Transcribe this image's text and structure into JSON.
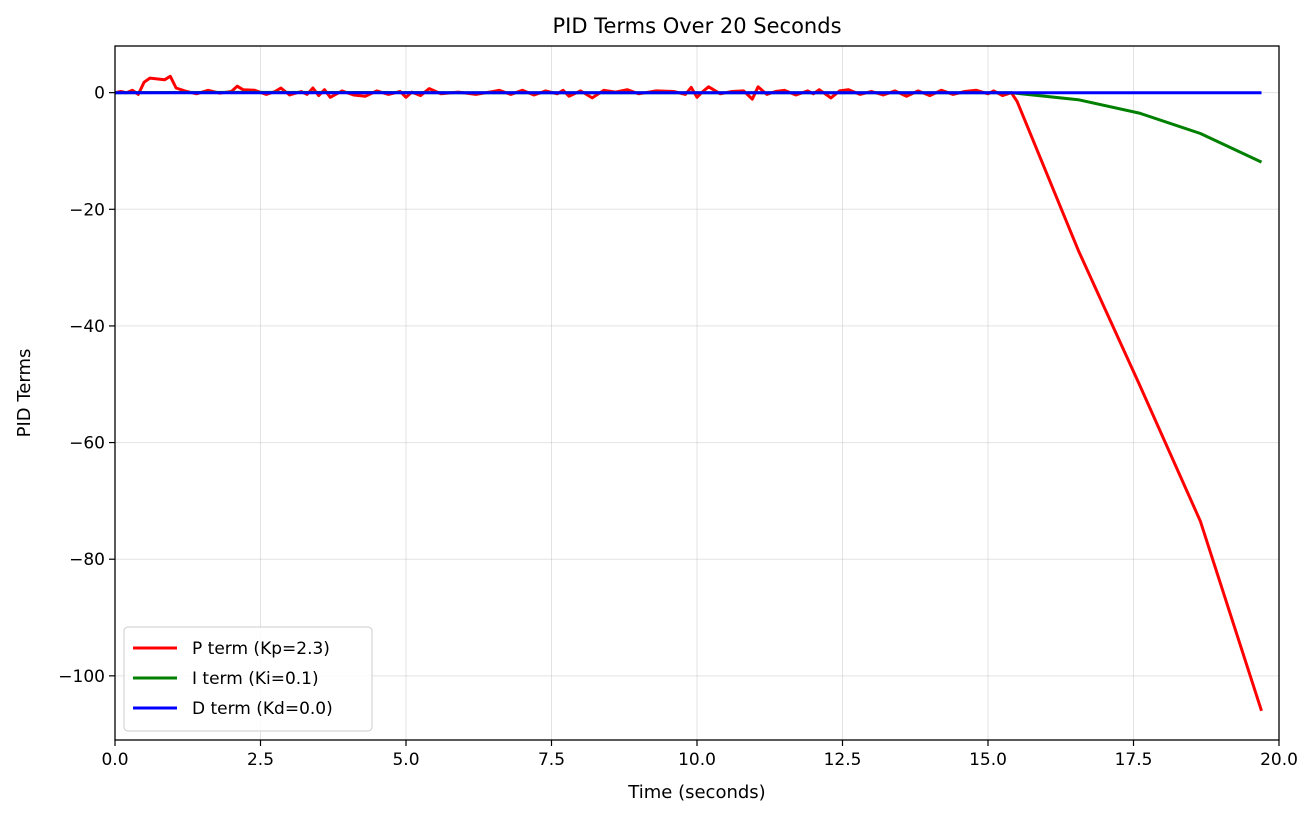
{
  "chart_data": {
    "type": "line",
    "title": "PID Terms Over 20 Seconds",
    "xlabel": "Time (seconds)",
    "ylabel": "PID Terms",
    "xlim": [
      0,
      20
    ],
    "ylim": [
      -111,
      8
    ],
    "xticks": [
      0.0,
      2.5,
      5.0,
      7.5,
      10.0,
      12.5,
      15.0,
      17.5,
      20.0
    ],
    "xtick_labels": [
      "0.0",
      "2.5",
      "5.0",
      "7.5",
      "10.0",
      "12.5",
      "15.0",
      "17.5",
      "20.0"
    ],
    "yticks": [
      0,
      -20,
      -40,
      -60,
      -80,
      -100
    ],
    "ytick_labels": [
      "0",
      "−20",
      "−40",
      "−60",
      "−80",
      "−100"
    ],
    "grid": true,
    "legend_position": "lower-left",
    "series": [
      {
        "name": "P term (Kp=2.3)",
        "color": "#ff0000",
        "x": [
          0.0,
          0.1,
          0.2,
          0.3,
          0.4,
          0.5,
          0.6,
          0.7,
          0.85,
          0.95,
          1.05,
          1.2,
          1.4,
          1.6,
          1.8,
          2.0,
          2.1,
          2.2,
          2.4,
          2.6,
          2.75,
          2.85,
          3.0,
          3.2,
          3.3,
          3.4,
          3.5,
          3.6,
          3.7,
          3.9,
          4.1,
          4.3,
          4.5,
          4.7,
          4.9,
          5.0,
          5.1,
          5.25,
          5.4,
          5.6,
          5.9,
          6.2,
          6.5,
          6.6,
          6.8,
          7.0,
          7.2,
          7.4,
          7.6,
          7.7,
          7.8,
          8.0,
          8.2,
          8.4,
          8.6,
          8.8,
          9.0,
          9.3,
          9.6,
          9.8,
          9.9,
          10.0,
          10.1,
          10.2,
          10.4,
          10.6,
          10.8,
          10.95,
          11.05,
          11.2,
          11.35,
          11.5,
          11.7,
          11.9,
          12.0,
          12.1,
          12.3,
          12.45,
          12.6,
          12.8,
          13.0,
          13.2,
          13.4,
          13.6,
          13.8,
          14.0,
          14.2,
          14.4,
          14.6,
          14.8,
          15.0,
          15.1,
          15.25,
          15.4,
          15.5,
          16.55,
          17.6,
          18.65,
          19.7
        ],
        "y": [
          0.0,
          0.2,
          0.0,
          0.4,
          -0.3,
          1.8,
          2.5,
          2.4,
          2.2,
          2.8,
          0.8,
          0.3,
          -0.2,
          0.4,
          -0.1,
          0.2,
          1.1,
          0.5,
          0.4,
          -0.3,
          0.2,
          0.8,
          -0.4,
          0.2,
          -0.3,
          0.8,
          -0.5,
          0.5,
          -0.8,
          0.3,
          -0.4,
          -0.6,
          0.3,
          -0.3,
          0.2,
          -0.8,
          0.1,
          -0.5,
          0.7,
          -0.2,
          0.1,
          -0.3,
          0.2,
          0.4,
          -0.3,
          0.4,
          -0.4,
          0.3,
          -0.2,
          0.4,
          -0.6,
          0.3,
          -0.9,
          0.4,
          0.1,
          0.5,
          -0.2,
          0.3,
          0.2,
          -0.3,
          0.9,
          -0.8,
          0.2,
          1.0,
          -0.2,
          0.2,
          0.3,
          -1.1,
          1.0,
          -0.3,
          0.2,
          0.4,
          -0.4,
          0.3,
          -0.2,
          0.5,
          -0.9,
          0.3,
          0.5,
          -0.3,
          0.2,
          -0.4,
          0.3,
          -0.6,
          0.3,
          -0.5,
          0.4,
          -0.3,
          0.2,
          0.4,
          -0.2,
          0.3,
          -0.5,
          0.0,
          -1.5,
          -27.0,
          -50.0,
          -73.5,
          -106.0
        ]
      },
      {
        "name": "I term (Ki=0.1)",
        "color": "#008000",
        "x": [
          0.0,
          2.0,
          4.0,
          6.0,
          8.0,
          10.0,
          12.0,
          14.0,
          15.4,
          16.55,
          17.6,
          18.65,
          19.7
        ],
        "y": [
          0.0,
          0.05,
          0.02,
          0.0,
          0.0,
          0.0,
          0.0,
          0.0,
          0.0,
          -1.2,
          -3.5,
          -7.0,
          -11.9
        ]
      },
      {
        "name": "D term (Kd=0.0)",
        "color": "#0000ff",
        "x": [
          0.0,
          19.7
        ],
        "y": [
          0.0,
          0.0
        ]
      }
    ]
  }
}
